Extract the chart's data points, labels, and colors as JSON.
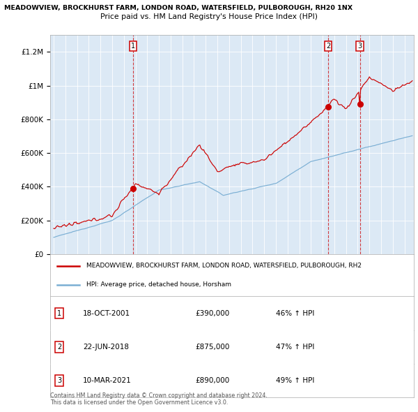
{
  "title_line1": "MEADOWVIEW, BROCKHURST FARM, LONDON ROAD, WATERSFIELD, PULBOROUGH, RH20 1NX",
  "title_line2": "Price paid vs. HM Land Registry's House Price Index (HPI)",
  "background_color": "#dce9f5",
  "sale_color": "#cc0000",
  "hpi_color": "#7bafd4",
  "sale_label": "MEADOWVIEW, BROCKHURST FARM, LONDON ROAD, WATERSFIELD, PULBOROUGH, RH2",
  "hpi_label": "HPI: Average price, detached house, Horsham",
  "transactions": [
    {
      "num": 1,
      "date": "18-OCT-2001",
      "price": 390000,
      "pct": "46% ↑ HPI",
      "x_year": 2001.8
    },
    {
      "num": 2,
      "date": "22-JUN-2018",
      "price": 875000,
      "pct": "47% ↑ HPI",
      "x_year": 2018.47
    },
    {
      "num": 3,
      "date": "10-MAR-2021",
      "price": 890000,
      "pct": "49% ↑ HPI",
      "x_year": 2021.19
    }
  ],
  "footer_line1": "Contains HM Land Registry data © Crown copyright and database right 2024.",
  "footer_line2": "This data is licensed under the Open Government Licence v3.0.",
  "ylim": [
    0,
    1300000
  ],
  "xlim_start": 1994.7,
  "xlim_end": 2025.8
}
